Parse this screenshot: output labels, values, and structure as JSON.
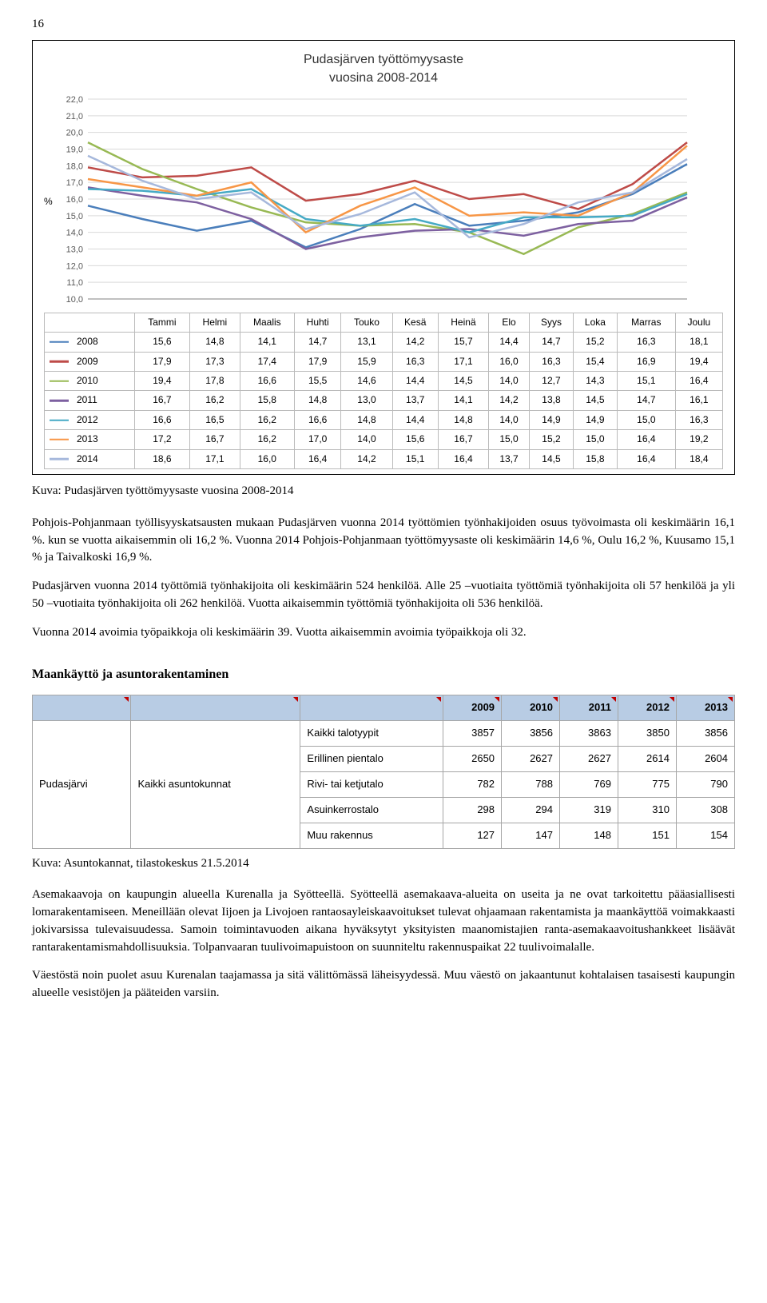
{
  "page_number": "16",
  "chart": {
    "type": "line",
    "title_line1": "Pudasjärven työttömyysaste",
    "title_line2": "vuosina 2008-2014",
    "y_axis_label": "%",
    "ylim": [
      10.0,
      22.0
    ],
    "ytick_step": 1.0,
    "background_color": "#ffffff",
    "grid_color": "#d9d9d9",
    "axis_color": "#808080",
    "months": [
      "Tammi",
      "Helmi",
      "Maalis",
      "Huhti",
      "Touko",
      "Kesä",
      "Heinä",
      "Elo",
      "Syys",
      "Loka",
      "Marras",
      "Joulu"
    ],
    "series": [
      {
        "name": "2008",
        "color": "#4a7ebb",
        "values": [
          15.6,
          14.8,
          14.1,
          14.7,
          13.1,
          14.2,
          15.7,
          14.4,
          14.7,
          15.2,
          16.3,
          18.1
        ]
      },
      {
        "name": "2009",
        "color": "#be4b48",
        "values": [
          17.9,
          17.3,
          17.4,
          17.9,
          15.9,
          16.3,
          17.1,
          16.0,
          16.3,
          15.4,
          16.9,
          19.4
        ]
      },
      {
        "name": "2010",
        "color": "#98b954",
        "values": [
          19.4,
          17.8,
          16.6,
          15.5,
          14.6,
          14.4,
          14.5,
          14.0,
          12.7,
          14.3,
          15.1,
          16.4
        ]
      },
      {
        "name": "2011",
        "color": "#7d60a0",
        "values": [
          16.7,
          16.2,
          15.8,
          14.8,
          13.0,
          13.7,
          14.1,
          14.2,
          13.8,
          14.5,
          14.7,
          16.1
        ]
      },
      {
        "name": "2012",
        "color": "#46aac5",
        "values": [
          16.6,
          16.5,
          16.2,
          16.6,
          14.8,
          14.4,
          14.8,
          14.0,
          14.9,
          14.9,
          15.0,
          16.3
        ]
      },
      {
        "name": "2013",
        "color": "#f79646",
        "values": [
          17.2,
          16.7,
          16.2,
          17.0,
          14.0,
          15.6,
          16.7,
          15.0,
          15.2,
          15.0,
          16.4,
          19.2
        ]
      },
      {
        "name": "2014",
        "color": "#a6b8dc",
        "values": [
          18.6,
          17.1,
          16.0,
          16.4,
          14.2,
          15.1,
          16.4,
          13.7,
          14.5,
          15.8,
          16.4,
          18.4
        ]
      }
    ],
    "line_width": 2.5,
    "title_fontsize": 16,
    "label_fontsize": 12
  },
  "chart_caption": "Kuva: Pudasjärven työttömyysaste vuosina 2008-2014",
  "para1": "Pohjois-Pohjanmaan työllisyyskatsausten mukaan Pudasjärven vuonna 2014 työttömien työnhakijoiden osuus työvoimasta oli keskimäärin 16,1 %. kun se vuotta aikaisemmin oli 16,2 %. Vuonna 2014 Pohjois-Pohjanmaan työttömyysaste oli keskimäärin 14,6 %, Oulu 16,2 %, Kuusamo 15,1 % ja Taivalkoski 16,9 %.",
  "para2": "Pudasjärven vuonna 2014 työttömiä työnhakijoita oli keskimäärin 524 henkilöä. Alle 25 –vuotiaita työttömiä työnhakijoita oli 57 henkilöä ja yli 50 –vuotiaita työnhakijoita oli 262 henkilöä. Vuotta aikaisemmin työttömiä työnhakijoita oli 536 henkilöä.",
  "para3": "Vuonna 2014 avoimia työpaikkoja oli keskimäärin 39. Vuotta aikaisemmin avoimia työpaikkoja oli 32.",
  "section_heading": "Maankäyttö ja asuntorakentaminen",
  "asunto_table": {
    "header_bg": "#b8cce4",
    "border_color": "#a6a6a6",
    "tri_color": "#c00000",
    "years": [
      "2009",
      "2010",
      "2011",
      "2012",
      "2013"
    ],
    "region": "Pudasjärvi",
    "group": "Kaikki asuntokunnat",
    "rows": [
      {
        "label": "Kaikki talotyypit",
        "vals": [
          3857,
          3856,
          3863,
          3850,
          3856
        ]
      },
      {
        "label": "Erillinen pientalo",
        "vals": [
          2650,
          2627,
          2627,
          2614,
          2604
        ]
      },
      {
        "label": "Rivi- tai ketjutalo",
        "vals": [
          782,
          788,
          769,
          775,
          790
        ]
      },
      {
        "label": "Asuinkerrostalo",
        "vals": [
          298,
          294,
          319,
          310,
          308
        ]
      },
      {
        "label": "Muu rakennus",
        "vals": [
          127,
          147,
          148,
          151,
          154
        ]
      }
    ]
  },
  "asunto_caption": "Kuva: Asuntokannat, tilastokeskus 21.5.2014",
  "para4": "Asemakaavoja on kaupungin alueella Kurenalla ja Syötteellä. Syötteellä asemakaava-alueita on useita ja ne ovat tarkoitettu pääasiallisesti lomarakentamiseen. Meneillään olevat Iijoen ja Livojoen rantaosayleiskaavoitukset tulevat ohjaamaan rakentamista ja maankäyttöä voimakkaasti jokivarsissa tulevaisuudessa. Samoin toimintavuoden aikana hyväksytyt yksityisten maanomistajien ranta-asemakaavoitushankkeet lisäävät rantarakentamismahdollisuuksia. Tolpanvaaran tuulivoimapuistoon on suunniteltu rakennuspaikat 22 tuulivoimalalle.",
  "para5": "Väestöstä noin puolet asuu Kurenalan taajamassa ja sitä välittömässä läheisyydessä. Muu väestö on jakaantunut kohtalaisen tasaisesti kaupungin alueelle vesistöjen ja pääteiden varsiin."
}
